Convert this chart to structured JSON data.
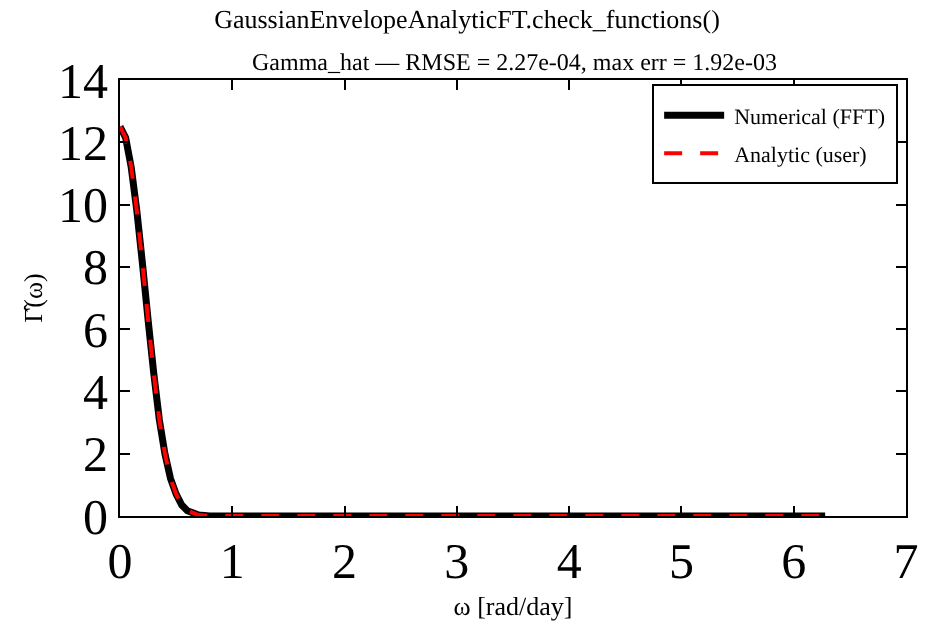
{
  "chart_data": {
    "type": "line",
    "title": "GaussianEnvelopeAnalyticFT.check_functions()",
    "subtitle": "Gamma_hat — RMSE = 2.27e-04, max err = 1.92e-03",
    "xlabel": "ω [rad/day]",
    "ylabel": "Γ̂(ω)",
    "x": [
      0,
      0.05,
      0.1,
      0.15,
      0.2,
      0.25,
      0.3,
      0.35,
      0.4,
      0.45,
      0.5,
      0.55,
      0.6,
      0.7,
      0.8,
      1,
      2,
      3,
      4,
      5,
      6,
      6.28
    ],
    "series": [
      {
        "name": "Numerical (FFT)",
        "color": "#000000",
        "line_style": "solid",
        "values": [
          12.5,
          12.15,
          11.2,
          9.8,
          8.1,
          6.3,
          4.6,
          3.1,
          2.0,
          1.2,
          0.7,
          0.35,
          0.17,
          0.03,
          0,
          0,
          0,
          0,
          0,
          0,
          0,
          0
        ]
      },
      {
        "name": "Analytic (user)",
        "color": "#ff0000",
        "line_style": "dashed",
        "values": [
          12.5,
          12.15,
          11.2,
          9.8,
          8.1,
          6.3,
          4.6,
          3.1,
          2.0,
          1.2,
          0.7,
          0.35,
          0.17,
          0.03,
          0,
          0,
          0,
          0,
          0,
          0,
          0,
          0
        ]
      }
    ],
    "xlim": [
      0,
      7
    ],
    "xticks": [
      0,
      1,
      2,
      3,
      4,
      5,
      6,
      7
    ],
    "ylim": [
      0,
      14
    ],
    "yticks": [
      0,
      2,
      4,
      6,
      8,
      10,
      12,
      14
    ],
    "grid": false,
    "legend": "top right",
    "marker": "none"
  }
}
